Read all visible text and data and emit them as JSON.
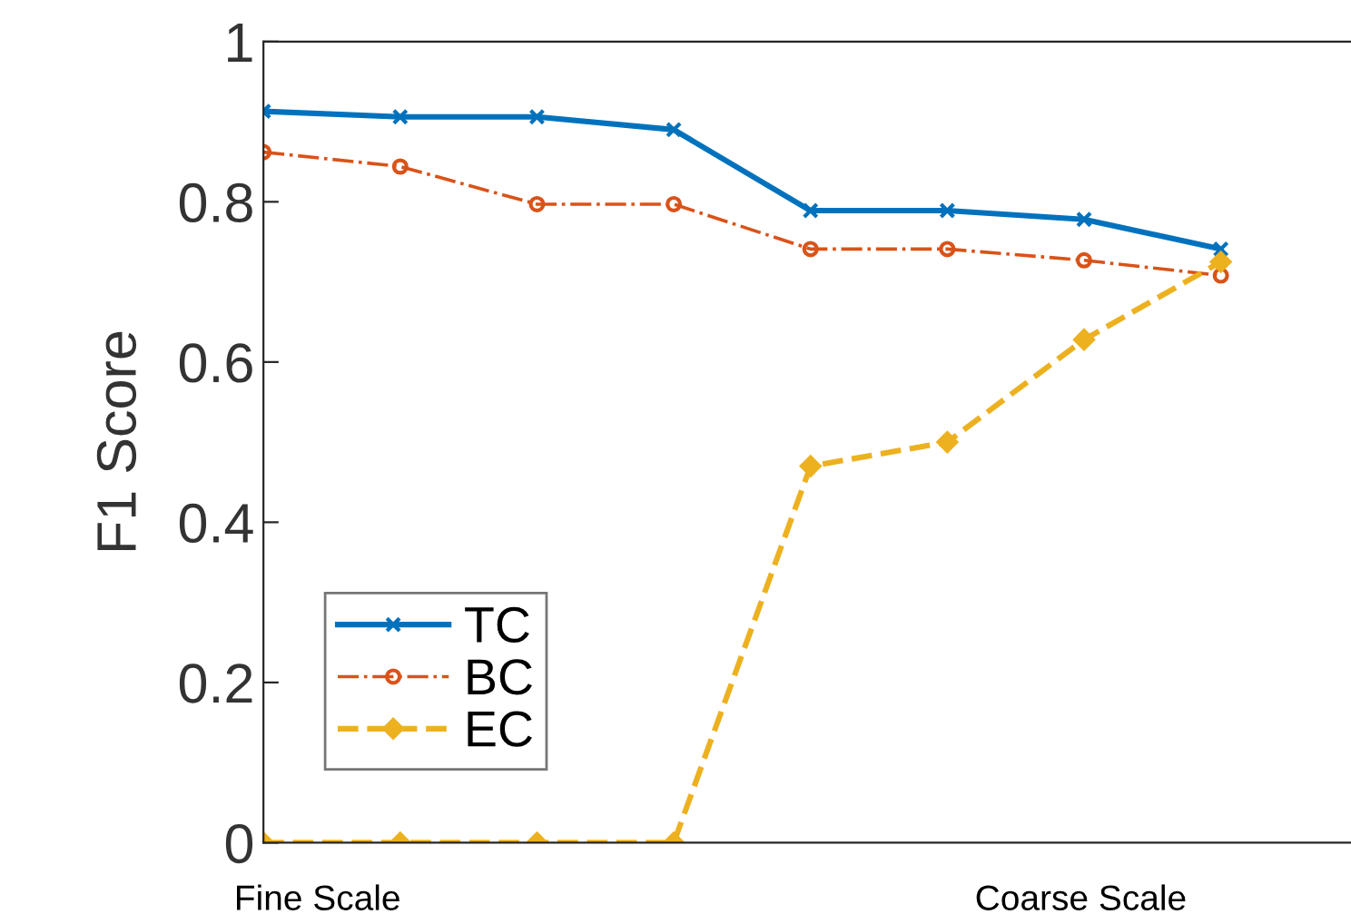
{
  "chart_data": {
    "type": "line",
    "ylabel": "F1 Score",
    "categories": [
      null,
      null,
      null,
      null,
      null,
      null,
      null,
      null
    ],
    "series": [
      {
        "name": "TC",
        "color": "#0072bd",
        "marker": "cross",
        "line_style": "solid",
        "values": [
          0.913,
          0.906,
          0.906,
          0.89,
          0.789,
          0.789,
          0.778,
          0.741
        ]
      },
      {
        "name": "BC",
        "color": "#d95319",
        "marker": "circle",
        "line_style": "dotted",
        "values": [
          0.862,
          0.844,
          0.797,
          0.797,
          0.741,
          0.741,
          0.727,
          0.708
        ]
      },
      {
        "name": "EC",
        "color": "#edb120",
        "marker": "diamond",
        "line_style": "dashed",
        "values": [
          0,
          0,
          0,
          0,
          0.47,
          0.5,
          0.628,
          0.725
        ]
      }
    ],
    "ylim": [
      0,
      1
    ],
    "yticks": [
      0,
      0.2,
      0.4,
      0.6,
      0.8,
      1
    ],
    "grid": false,
    "legend": "bottom left",
    "tick_labels": "y",
    "annotations": [
      "Fine Scale",
      "Coarse Scale"
    ]
  }
}
